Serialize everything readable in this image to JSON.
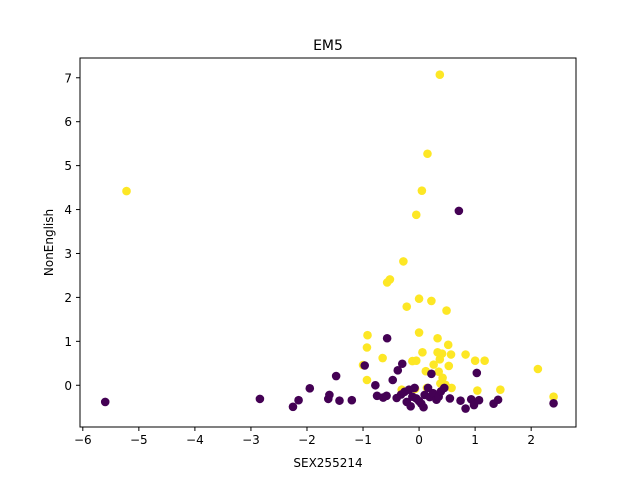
{
  "chart_data": {
    "type": "scatter",
    "title": "EM5",
    "xlabel": "SEX255214",
    "ylabel": "NonEnglish",
    "xlim": [
      -6.05,
      2.8
    ],
    "ylim": [
      -0.95,
      7.45
    ],
    "xticks": [
      -6,
      -5,
      -4,
      -3,
      -2,
      -1,
      0,
      1,
      2
    ],
    "yticks": [
      0,
      1,
      2,
      3,
      4,
      5,
      6,
      7
    ],
    "xtick_labels": [
      "−6",
      "−5",
      "−4",
      "−3",
      "−2",
      "−1",
      "0",
      "1",
      "2"
    ],
    "ytick_labels": [
      "0",
      "1",
      "2",
      "3",
      "4",
      "5",
      "6",
      "7"
    ],
    "grid": false,
    "legend": "none",
    "series": [
      {
        "color": "#fde725",
        "points": [
          [
            -5.22,
            4.42
          ],
          [
            0.37,
            7.07
          ],
          [
            0.15,
            5.27
          ],
          [
            0.05,
            4.43
          ],
          [
            -0.05,
            3.88
          ],
          [
            -0.28,
            2.82
          ],
          [
            -0.52,
            2.41
          ],
          [
            -0.57,
            2.34
          ],
          [
            0.0,
            1.97
          ],
          [
            0.22,
            1.92
          ],
          [
            -0.22,
            1.79
          ],
          [
            0.49,
            1.7
          ],
          [
            -0.92,
            1.14
          ],
          [
            0.0,
            1.2
          ],
          [
            0.33,
            1.07
          ],
          [
            0.52,
            0.92
          ],
          [
            -0.93,
            0.86
          ],
          [
            0.06,
            0.75
          ],
          [
            0.33,
            0.75
          ],
          [
            0.41,
            0.72
          ],
          [
            0.57,
            0.7
          ],
          [
            0.83,
            0.7
          ],
          [
            -0.65,
            0.62
          ],
          [
            0.37,
            0.59
          ],
          [
            1.0,
            0.56
          ],
          [
            1.17,
            0.56
          ],
          [
            -0.12,
            0.55
          ],
          [
            -0.05,
            0.56
          ],
          [
            0.26,
            0.47
          ],
          [
            0.53,
            0.44
          ],
          [
            -1.0,
            0.46
          ],
          [
            0.12,
            0.32
          ],
          [
            0.35,
            0.31
          ],
          [
            2.12,
            0.37
          ],
          [
            -0.93,
            0.12
          ],
          [
            0.42,
            0.17
          ],
          [
            0.38,
            0.04
          ],
          [
            0.47,
            0.01
          ],
          [
            0.58,
            -0.06
          ],
          [
            -0.07,
            -0.08
          ],
          [
            0.14,
            -0.06
          ],
          [
            -0.31,
            -0.1
          ],
          [
            1.04,
            -0.12
          ],
          [
            1.45,
            -0.1
          ],
          [
            2.4,
            -0.26
          ]
        ]
      },
      {
        "color": "#440154",
        "points": [
          [
            -5.6,
            -0.38
          ],
          [
            -2.84,
            -0.31
          ],
          [
            -2.25,
            -0.49
          ],
          [
            -2.15,
            -0.34
          ],
          [
            -1.95,
            -0.07
          ],
          [
            -1.62,
            -0.31
          ],
          [
            -1.6,
            -0.22
          ],
          [
            -1.48,
            0.21
          ],
          [
            -1.42,
            -0.35
          ],
          [
            -1.2,
            -0.34
          ],
          [
            -0.97,
            0.45
          ],
          [
            -0.57,
            1.07
          ],
          [
            -0.78,
            0.0
          ],
          [
            -0.75,
            -0.24
          ],
          [
            -0.64,
            -0.28
          ],
          [
            -0.58,
            -0.24
          ],
          [
            -0.47,
            0.12
          ],
          [
            -0.4,
            -0.29
          ],
          [
            -0.38,
            0.34
          ],
          [
            -0.32,
            -0.21
          ],
          [
            -0.3,
            0.49
          ],
          [
            -0.26,
            -0.15
          ],
          [
            -0.22,
            -0.38
          ],
          [
            -0.18,
            -0.1
          ],
          [
            -0.15,
            -0.48
          ],
          [
            -0.12,
            -0.26
          ],
          [
            -0.08,
            -0.06
          ],
          [
            -0.05,
            -0.3
          ],
          [
            0.0,
            -0.36
          ],
          [
            0.04,
            -0.42
          ],
          [
            0.08,
            -0.5
          ],
          [
            0.1,
            -0.22
          ],
          [
            0.16,
            -0.06
          ],
          [
            0.19,
            -0.27
          ],
          [
            0.22,
            0.26
          ],
          [
            0.25,
            -0.18
          ],
          [
            0.31,
            -0.33
          ],
          [
            0.35,
            -0.26
          ],
          [
            0.39,
            -0.14
          ],
          [
            0.45,
            -0.06
          ],
          [
            0.55,
            -0.3
          ],
          [
            0.71,
            3.97
          ],
          [
            0.74,
            -0.35
          ],
          [
            0.83,
            -0.53
          ],
          [
            0.93,
            -0.32
          ],
          [
            0.98,
            -0.45
          ],
          [
            1.03,
            0.28
          ],
          [
            1.07,
            -0.34
          ],
          [
            1.33,
            -0.42
          ],
          [
            1.41,
            -0.33
          ],
          [
            2.4,
            -0.41
          ]
        ]
      }
    ]
  }
}
